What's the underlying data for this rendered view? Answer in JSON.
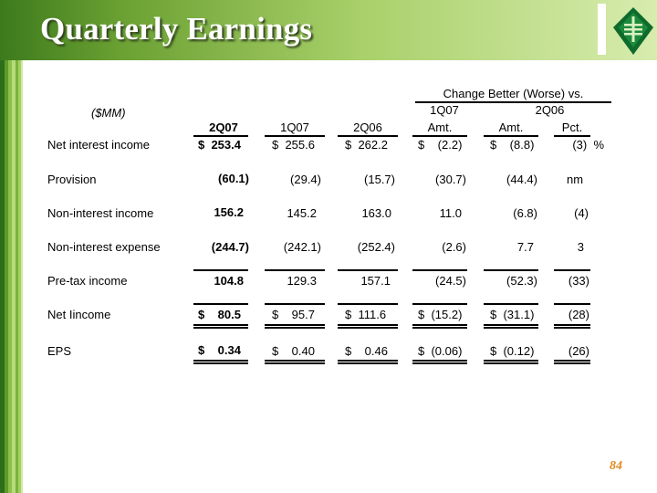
{
  "title": "Quarterly Earnings",
  "page_number": "84",
  "colors": {
    "accent_green": "#6aa032",
    "dark_green": "#2e6e1a",
    "page_number": "#e08a1e"
  },
  "table": {
    "units": "($MM)",
    "change_header": "Change Better (Worse) vs.",
    "group_1q07": "1Q07",
    "group_2q06": "2Q06",
    "columns": [
      "2Q07",
      "1Q07",
      "2Q06",
      "Amt.",
      "Amt.",
      "Pct."
    ],
    "rows": [
      {
        "label": "Net interest income",
        "cells": [
          "$  253.4",
          "$  255.6",
          "$  262.2",
          "$    (2.2)",
          "$    (8.8)",
          "(3)  %"
        ]
      },
      {
        "label": "Provision",
        "cells": [
          "(60.1)",
          "(29.4)",
          "(15.7)",
          "(30.7)",
          "(44.4)",
          "nm"
        ]
      },
      {
        "label": "Non-interest income",
        "cells": [
          "156.2",
          "145.2",
          "163.0",
          "11.0",
          "(6.8)",
          "(4)"
        ]
      },
      {
        "label": "Non-interest expense",
        "cells": [
          "(244.7)",
          "(242.1)",
          "(252.4)",
          "(2.6)",
          "7.7",
          "3"
        ]
      },
      {
        "label": "Pre-tax income",
        "cells": [
          "104.8",
          "129.3",
          "157.1",
          "(24.5)",
          "(52.3)",
          "(33)"
        ]
      },
      {
        "label": "Net Iincome",
        "cells": [
          "$    80.5",
          "$    95.7",
          "$  111.6",
          "$  (15.2)",
          "$  (31.1)",
          "(28)"
        ]
      },
      {
        "label": "EPS",
        "cells": [
          "$    0.34",
          "$    0.40",
          "$    0.46",
          "$  (0.06)",
          "$  (0.12)",
          "(26)"
        ]
      }
    ]
  }
}
